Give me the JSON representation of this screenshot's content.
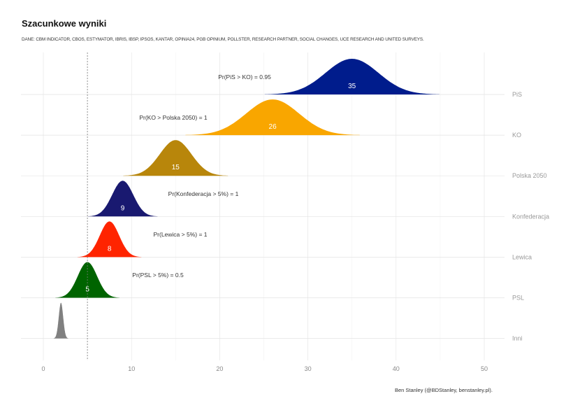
{
  "chart_data": {
    "type": "ridgeline",
    "title": "Szacunkowe wyniki",
    "subtitle": "DANE: CBM INDICATOR, CBOS, ESTYMATOR, IBRIS, IBSP, IPSOS, KANTAR, OPINIA24, PGB OPINIUM, POLLSTER, RESEARCH PARTNER, SOCIAL CHANGES, UCE RESEARCH AND UNITED SURVEYS.",
    "caption": "Ben Stanley (@BDStanley, benstanley.pl).",
    "xlim": [
      -2.5,
      53
    ],
    "xticks": [
      0,
      10,
      20,
      30,
      40,
      50
    ],
    "threshold_line": 5,
    "grid": true,
    "series": [
      {
        "name": "PiS",
        "mean": 35,
        "sd": 3.0,
        "label": "35",
        "color": "#001c8c",
        "annotation": "Pr(PiS > KO)  =  0.95"
      },
      {
        "name": "KO",
        "mean": 26,
        "sd": 3.0,
        "label": "26",
        "color": "#f9a600",
        "annotation": "Pr(KO > Polska 2050)  =  1"
      },
      {
        "name": "Polska 2050",
        "mean": 15,
        "sd": 1.8,
        "label": "15",
        "color": "#b8860b",
        "annotation": ""
      },
      {
        "name": "Konfederacja",
        "mean": 9,
        "sd": 1.2,
        "label": "9",
        "color": "#191970",
        "annotation": "Pr(Konfederacja > 5%)  =  1"
      },
      {
        "name": "Lewica",
        "mean": 7.5,
        "sd": 1.1,
        "label": "8",
        "color": "#ff2400",
        "annotation": "Pr(Lewica > 5%)  =  1"
      },
      {
        "name": "PSL",
        "mean": 5,
        "sd": 1.1,
        "label": "5",
        "color": "#006400",
        "annotation": "Pr(PSL > 5%)  =  0.5"
      },
      {
        "name": "Inni",
        "mean": 2,
        "sd": 0.25,
        "label": "",
        "color": "#808080",
        "annotation": ""
      }
    ]
  }
}
